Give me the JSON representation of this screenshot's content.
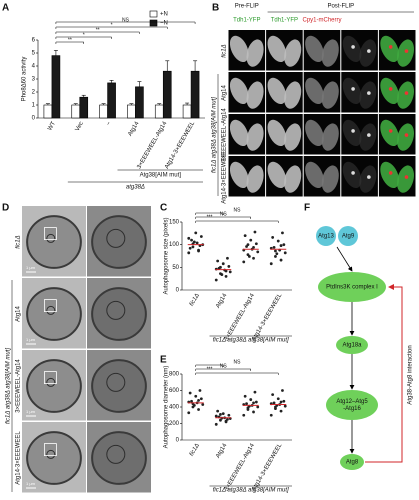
{
  "panel_letters": [
    "A",
    "B",
    "C",
    "D",
    "E",
    "F"
  ],
  "chart_data": [
    {
      "type": "bar",
      "y_label": "Pho8Δ60 activity",
      "categories": [
        "WT",
        "Vec",
        "−",
        "Atg14",
        "3×EEEWEEL-Atg14",
        "Atg14-3×EEEWEEL"
      ],
      "series": [
        {
          "name": "+N",
          "color": "#ffffff",
          "values": [
            1.0,
            1.0,
            1.0,
            1.0,
            1.0,
            1.0
          ],
          "errors": [
            0.1,
            0.1,
            0.1,
            0.1,
            0.1,
            0.15
          ]
        },
        {
          "name": "−N",
          "color": "#1a1a1a",
          "values": [
            4.8,
            1.6,
            2.7,
            2.4,
            3.6,
            3.6
          ],
          "errors": [
            0.4,
            0.15,
            0.2,
            0.4,
            0.8,
            0.8
          ]
        }
      ],
      "ylim": [
        0,
        6
      ],
      "yticks": [
        0,
        1,
        2,
        3,
        4,
        5,
        6
      ],
      "comparisons": [
        "NS",
        "*",
        "**",
        "*",
        "**"
      ],
      "group_labels": [
        "Atg38[AIM mut]",
        "atg38Δ"
      ]
    },
    {
      "type": "strip",
      "y_label": "Autophagosome size (pixels)",
      "categories": [
        "fic1Δ",
        "Atg14",
        "3×EEEWEEL-Atg14",
        "Atg14-3×EEEWEEL"
      ],
      "values": [
        [
          82,
          88,
          95,
          100,
          104,
          110,
          118,
          126,
          92,
          98,
          106,
          114,
          86,
          102
        ],
        [
          22,
          30,
          36,
          40,
          44,
          48,
          52,
          58,
          64,
          70,
          34,
          46,
          42,
          50
        ],
        [
          62,
          70,
          78,
          84,
          90,
          96,
          102,
          110,
          120,
          128,
          74,
          88,
          94,
          100
        ],
        [
          58,
          66,
          74,
          82,
          88,
          94,
          100,
          108,
          116,
          126,
          80,
          92,
          98,
          86
        ]
      ],
      "means": [
        100,
        45,
        90,
        90
      ],
      "ylim": [
        0,
        150
      ],
      "yticks": [
        0,
        50,
        100,
        150
      ],
      "comparisons": [
        "***",
        "NS",
        "NS"
      ],
      "group_label": "fic1Δ atg38Δ atg38[AIM mut]"
    },
    {
      "type": "strip",
      "y_label": "Autophagosome diameter (nm)",
      "categories": [
        "fic1Δ",
        "Atg14",
        "3×EEEWEEL-Atg14",
        "Atg14-3×EEEWEEL"
      ],
      "values": [
        [
          330,
          370,
          400,
          430,
          450,
          470,
          500,
          530,
          570,
          600,
          420,
          460,
          480,
          440
        ],
        [
          190,
          220,
          240,
          260,
          270,
          280,
          300,
          320,
          350,
          250,
          265,
          290,
          230,
          310
        ],
        [
          300,
          340,
          370,
          400,
          420,
          440,
          460,
          490,
          530,
          580,
          410,
          430,
          450,
          390
        ],
        [
          300,
          350,
          380,
          410,
          430,
          450,
          470,
          500,
          550,
          600,
          420,
          440,
          460,
          400
        ]
      ],
      "means": [
        450,
        270,
        420,
        430
      ],
      "ylim": [
        0,
        800
      ],
      "yticks": [
        0,
        200,
        400,
        600,
        800
      ],
      "comparisons": [
        "***",
        "NS",
        "NS"
      ],
      "group_label": "fic1Δ atg38Δ atg38[AIM mut]"
    }
  ],
  "microscopy": {
    "pre_header": "Pre-FLIP",
    "post_header": "Post-FLIP",
    "channels": [
      "Tdh1-YFP",
      "Tdh1-YFP",
      "Cpy1-mCherry"
    ],
    "rows": [
      "fic1Δ",
      "Atg14",
      "3×EEEWEEL-Atg14",
      "Atg14-3×EEEWEEL"
    ],
    "group_label": "fic1Δ atg38Δ atg38[AIM mut]"
  },
  "em": {
    "rows": [
      "fic1Δ",
      "Atg14",
      "3×EEEWEEL-Atg14",
      "Atg14-3×EEEWEEL"
    ],
    "group_label": "fic1Δ atg38Δ atg38[AIM mut]",
    "scale_label": "1 μm"
  },
  "diagram": {
    "nodes": [
      {
        "label": [
          "Atg13"
        ]
      },
      {
        "label": [
          "Atg9"
        ]
      },
      {
        "label": [
          "PtdIns3K complex I"
        ]
      },
      {
        "label": [
          "Atg18a"
        ]
      },
      {
        "label": [
          "Atg12–Atg5",
          "-Atg16"
        ]
      },
      {
        "label": [
          "Atg8"
        ]
      }
    ],
    "feedback_label": "Atg38-Atg8 interaction"
  }
}
